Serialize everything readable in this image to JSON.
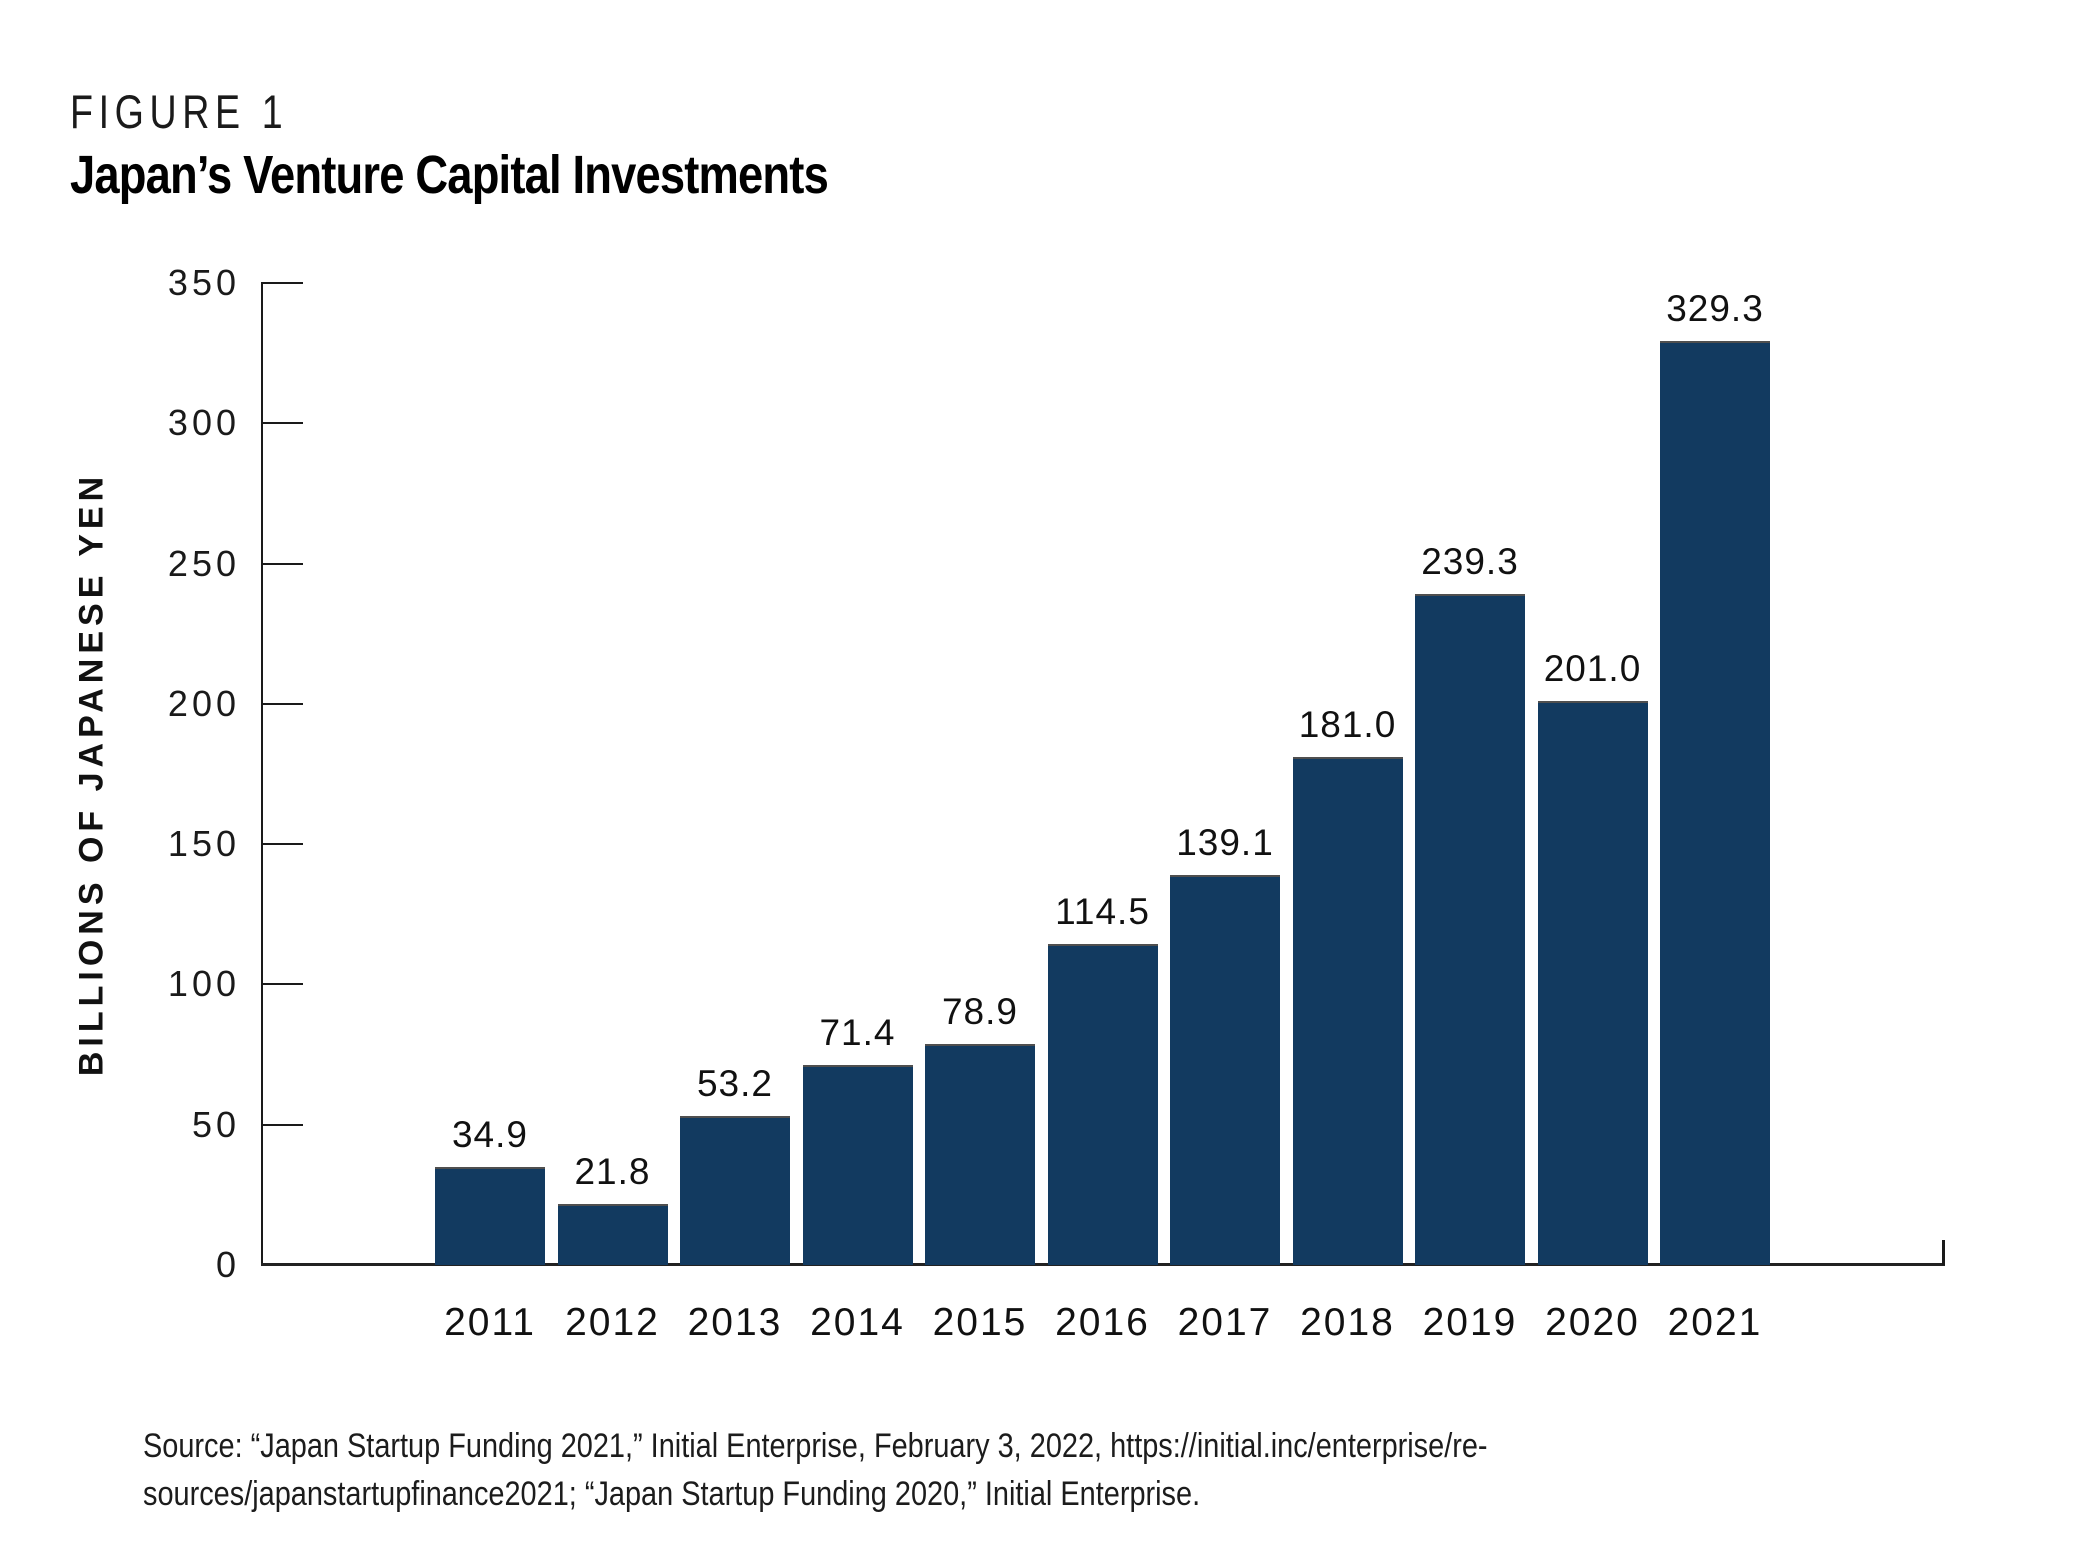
{
  "figure": {
    "label": "FIGURE 1",
    "title": "Japan’s Venture Capital Investments"
  },
  "chart_data": {
    "type": "bar",
    "title": "Japan’s Venture Capital Investments",
    "categories": [
      "2011",
      "2012",
      "2013",
      "2014",
      "2015",
      "2016",
      "2017",
      "2018",
      "2019",
      "2020",
      "2021"
    ],
    "values": [
      34.9,
      21.8,
      53.2,
      71.4,
      78.9,
      114.5,
      139.1,
      181.0,
      239.3,
      201.0,
      329.3
    ],
    "value_labels": [
      "34.9",
      "21.8",
      "53.2",
      "71.4",
      "78.9",
      "114.5",
      "139.1",
      "181.0",
      "239.3",
      "201.0",
      "329.3"
    ],
    "xlabel": "",
    "ylabel": "BILLIONS OF JAPANESE YEN",
    "ylim": [
      0,
      350
    ],
    "y_ticks": [
      0,
      50,
      100,
      150,
      200,
      250,
      300,
      350
    ],
    "grid": false,
    "legend": "none",
    "bar_color": "#123a60"
  },
  "source": {
    "line1": "Source: “Japan Startup Funding 2021,” Initial Enterprise, February 3, 2022, https://initial.inc/enterprise/re-",
    "line2": "sources/japanstartupfinance2021; “Japan Startup Funding 2020,” Initial Enterprise."
  }
}
